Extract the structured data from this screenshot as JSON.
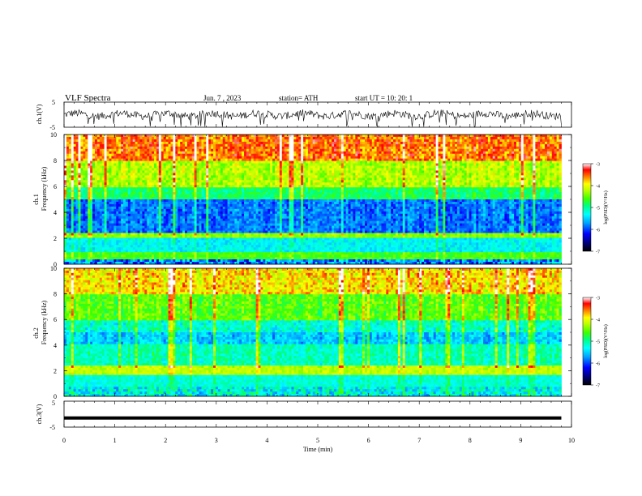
{
  "header": {
    "title": "VLF  Spectra",
    "date": "Jun. 7  , 2023",
    "station": "station= ATH",
    "start_ut": "start  UT  =    10: 20: 1"
  },
  "chart_data": [
    {
      "type": "line",
      "name": "ch1-waveform",
      "ylabel": "ch.1(V)",
      "y_ticks": [
        "5",
        "-5"
      ],
      "ylim": [
        -5,
        5
      ],
      "xlim": [
        0,
        10
      ],
      "values_note_visible": false,
      "line_color": "#000000"
    },
    {
      "type": "heatmap",
      "name": "ch1-spectrogram",
      "ylabel": "ch.1\nFrequency  (kHz)",
      "ylabel_line1": "ch.1",
      "ylabel_line2": "Frequency  (kHz)",
      "y_ticks": [
        "10",
        "8",
        "6",
        "4",
        "2",
        "0"
      ],
      "ylim": [
        0,
        10
      ],
      "xlim": [
        0,
        9.8
      ],
      "colorbar": {
        "label": "log(PSD)(V²/Hz)",
        "ticks": [
          "-3",
          "-4",
          "-5",
          "-6",
          "-7"
        ],
        "range": [
          -7,
          -3
        ]
      }
    },
    {
      "type": "heatmap",
      "name": "ch2-spectrogram",
      "ylabel_line1": "ch.2",
      "ylabel_line2": "Frequency  (kHz)",
      "y_ticks": [
        "10",
        "8",
        "6",
        "4",
        "2",
        "0"
      ],
      "ylim": [
        0,
        10
      ],
      "xlim": [
        0,
        9.8
      ],
      "colorbar": {
        "label": "log(PSD)(V²/Hz)",
        "ticks": [
          "-3",
          "-4",
          "-5",
          "-6",
          "-7"
        ],
        "range": [
          -7,
          -3
        ]
      }
    },
    {
      "type": "line",
      "name": "ch3-voltage",
      "ylabel": "ch.3(V)",
      "y_ticks": [
        "5",
        "-5"
      ],
      "ylim": [
        -5,
        5
      ],
      "x": [
        0,
        9.8
      ],
      "values": [
        -1.5,
        -1.5
      ]
    }
  ],
  "x_axis": {
    "label": "Time  (min)",
    "ticks": [
      "0",
      "1",
      "2",
      "3",
      "4",
      "5",
      "6",
      "7",
      "8",
      "9",
      "10"
    ],
    "range": [
      0,
      10
    ]
  }
}
